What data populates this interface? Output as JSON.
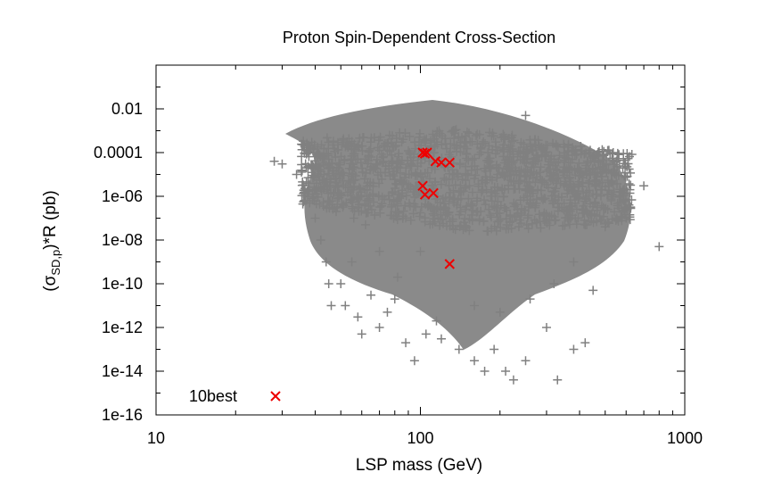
{
  "chart_data": {
    "type": "scatter",
    "title": "Proton Spin-Dependent Cross-Section",
    "xlabel": "LSP mass (GeV)",
    "ylabel": "(σSD,p)*R (pb)",
    "ylabel_parts": {
      "open": "(σ",
      "sub": "SD,p",
      "close": ")*R (pb)"
    },
    "xscale": "log",
    "yscale": "log",
    "xlim": [
      10,
      1000
    ],
    "ylim": [
      1e-16,
      1
    ],
    "x_ticks": [
      {
        "value": 10,
        "label": "10"
      },
      {
        "value": 100,
        "label": "100"
      },
      {
        "value": 1000,
        "label": "1000"
      }
    ],
    "y_ticks": [
      {
        "value": 1e-16,
        "label": "1e-16"
      },
      {
        "value": 1e-14,
        "label": "1e-14"
      },
      {
        "value": 1e-12,
        "label": "1e-12"
      },
      {
        "value": 1e-10,
        "label": "1e-10"
      },
      {
        "value": 1e-08,
        "label": "1e-08"
      },
      {
        "value": 1e-06,
        "label": "1e-06"
      },
      {
        "value": 0.0001,
        "label": "0.0001"
      },
      {
        "value": 0.01,
        "label": "0.01"
      }
    ],
    "grid": false,
    "legend_position": "bottom-left",
    "series": [
      {
        "name": "",
        "marker": "plus",
        "color": "#808080",
        "points": [
          [
            28,
            4e-05
          ],
          [
            30,
            3e-05
          ],
          [
            34,
            1e-05
          ],
          [
            38,
            2e-06
          ],
          [
            40,
            1e-07
          ],
          [
            42,
            1e-08
          ],
          [
            44,
            1e-09
          ],
          [
            45,
            1e-10
          ],
          [
            46,
            1e-11
          ],
          [
            50,
            1e-10
          ],
          [
            52,
            1e-11
          ],
          [
            55,
            1e-09
          ],
          [
            58,
            3e-12
          ],
          [
            60,
            5e-13
          ],
          [
            65,
            3e-11
          ],
          [
            70,
            1e-12
          ],
          [
            75,
            5e-12
          ],
          [
            80,
            2e-11
          ],
          [
            88,
            2e-13
          ],
          [
            95,
            3e-14
          ],
          [
            105,
            5e-13
          ],
          [
            115,
            2e-12
          ],
          [
            120,
            3e-13
          ],
          [
            140,
            1e-13
          ],
          [
            160,
            3e-14
          ],
          [
            175,
            1e-14
          ],
          [
            190,
            1e-13
          ],
          [
            210,
            1e-14
          ],
          [
            225,
            4e-15
          ],
          [
            250,
            3e-14
          ],
          [
            300,
            1e-12
          ],
          [
            330,
            4e-15
          ],
          [
            380,
            1e-13
          ],
          [
            420,
            2e-13
          ],
          [
            450,
            5e-11
          ],
          [
            500,
            4e-08
          ],
          [
            530,
            5e-06
          ],
          [
            600,
            1e-07
          ],
          [
            620,
            2e-06
          ],
          [
            700,
            3e-06
          ],
          [
            800,
            5e-09
          ],
          [
            110,
            0.0002
          ],
          [
            115,
            0.0003
          ],
          [
            130,
            0.00025
          ],
          [
            150,
            0.00015
          ],
          [
            250,
            0.005
          ],
          [
            60,
            0.0002
          ],
          [
            75,
            0.00025
          ],
          [
            90,
            0.00012
          ],
          [
            68,
            3e-05
          ],
          [
            55,
            0.00015
          ],
          [
            85,
            0.0003
          ],
          [
            48,
            2e-07
          ],
          [
            62,
            5e-08
          ],
          [
            78,
            4e-07
          ],
          [
            92,
            8e-08
          ],
          [
            100,
            3e-09
          ],
          [
            82,
            2e-10
          ],
          [
            70,
            3e-09
          ],
          [
            56,
            1e-07
          ],
          [
            45,
            5e-05
          ],
          [
            160,
            1e-11
          ],
          [
            200,
            5e-12
          ],
          [
            260,
            2e-11
          ],
          [
            320,
            1e-10
          ],
          [
            380,
            1e-09
          ],
          [
            420,
            5e-08
          ],
          [
            260,
            1e-06
          ],
          [
            320,
            5e-05
          ],
          [
            180,
            0.0001
          ]
        ]
      },
      {
        "name": "10best",
        "marker": "cross",
        "color": "#ee0000",
        "points": [
          [
            102,
            0.0001
          ],
          [
            104,
            9e-05
          ],
          [
            106,
            0.0001
          ],
          [
            114,
            4e-05
          ],
          [
            120,
            3.5e-05
          ],
          [
            129,
            3.5e-05
          ],
          [
            102,
            3e-06
          ],
          [
            104,
            1.2e-06
          ],
          [
            112,
            1.4e-06
          ],
          [
            129,
            8e-10
          ]
        ]
      }
    ]
  }
}
